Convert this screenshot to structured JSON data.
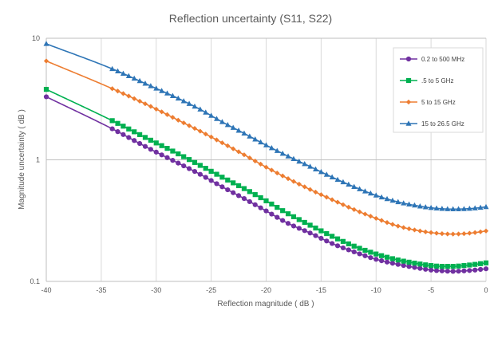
{
  "chart_data": {
    "type": "line",
    "title": "Reflection uncertainty (S11, S22)",
    "xlabel": "Reflection magnitude ( dB )",
    "ylabel": "Magnitude uncertainty ( dB )",
    "xlim": [
      -40,
      0
    ],
    "ylim": [
      0.1,
      10
    ],
    "y_scale": "log",
    "x_ticks": [
      -40,
      -35,
      -30,
      -25,
      -20,
      -15,
      -10,
      -5,
      0
    ],
    "y_ticks": [
      0.1,
      1,
      10
    ],
    "y_tick_labels": [
      "0.1",
      "1",
      "10"
    ],
    "grid": true,
    "legend_position": "top-right",
    "series": [
      {
        "name": "0.2 to 500 MHz",
        "color": "#7030a0",
        "marker": "circle",
        "x": [
          -40,
          -34,
          -30.5,
          -28,
          -26,
          -24,
          -22,
          -20,
          -18,
          -16,
          -14,
          -12,
          -10,
          -8,
          -6,
          -5,
          -4,
          -3,
          -2,
          -1,
          0
        ],
        "y": [
          3.3,
          1.8,
          1.22,
          0.94,
          0.76,
          0.6,
          0.48,
          0.38,
          0.3,
          0.25,
          0.205,
          0.175,
          0.152,
          0.138,
          0.128,
          0.124,
          0.122,
          0.121,
          0.122,
          0.124,
          0.127
        ]
      },
      {
        "name": ".5 to 5 GHz",
        "color": "#00b050",
        "marker": "square",
        "x": [
          -40,
          -34,
          -30.5,
          -28,
          -26,
          -24,
          -22,
          -20,
          -18,
          -16,
          -14,
          -12,
          -10,
          -8,
          -6,
          -5,
          -4,
          -3,
          -2,
          -1,
          0
        ],
        "y": [
          3.8,
          2.1,
          1.45,
          1.12,
          0.9,
          0.72,
          0.58,
          0.46,
          0.36,
          0.29,
          0.235,
          0.195,
          0.168,
          0.15,
          0.139,
          0.135,
          0.133,
          0.133,
          0.135,
          0.138,
          0.142
        ]
      },
      {
        "name": "5 to 15 GHz",
        "color": "#ed7d31",
        "marker": "diamond",
        "x": [
          -40,
          -34,
          -30.5,
          -28,
          -26,
          -24,
          -22,
          -20,
          -18,
          -16,
          -14,
          -12,
          -10,
          -8,
          -6,
          -5,
          -4,
          -3,
          -2,
          -1,
          0
        ],
        "y": [
          6.5,
          3.85,
          2.75,
          2.12,
          1.72,
          1.38,
          1.1,
          0.87,
          0.7,
          0.57,
          0.47,
          0.39,
          0.33,
          0.285,
          0.26,
          0.252,
          0.247,
          0.245,
          0.247,
          0.252,
          0.26
        ]
      },
      {
        "name": "15 to 26.5 GHz",
        "color": "#2e75b6",
        "marker": "triangle",
        "x": [
          -40,
          -34,
          -30.5,
          -28,
          -26,
          -24,
          -22,
          -20,
          -18,
          -16,
          -14,
          -12,
          -10,
          -8,
          -6,
          -5,
          -4,
          -3,
          -2,
          -1,
          0
        ],
        "y": [
          9.0,
          5.6,
          4.05,
          3.2,
          2.6,
          2.05,
          1.65,
          1.32,
          1.07,
          0.88,
          0.72,
          0.6,
          0.51,
          0.45,
          0.415,
          0.403,
          0.396,
          0.393,
          0.395,
          0.4,
          0.41
        ]
      }
    ]
  }
}
